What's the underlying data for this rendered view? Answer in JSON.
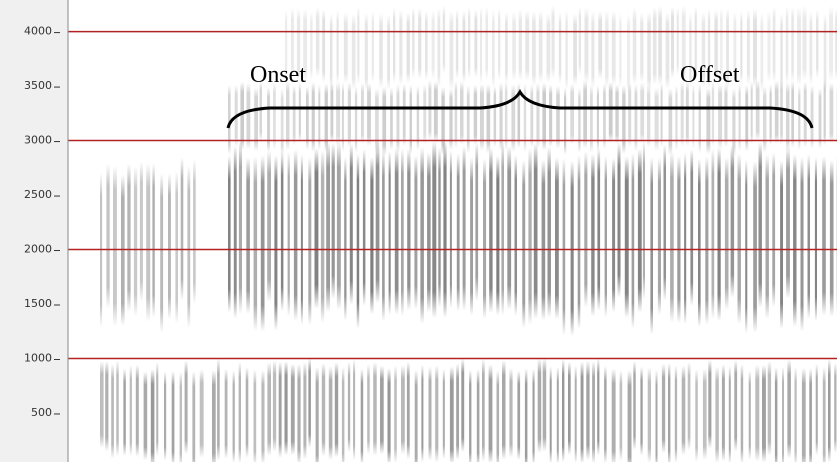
{
  "chart_data": {
    "type": "spectrogram",
    "ylim": [
      50,
      4290
    ],
    "yticks": [
      500,
      1000,
      1500,
      2000,
      2500,
      3000,
      3500,
      4000
    ],
    "grid_lines": [
      1000,
      2000,
      3000,
      4000
    ],
    "grid_color": "#b22222",
    "annotations": [
      "Onset",
      "Offset"
    ]
  }
}
